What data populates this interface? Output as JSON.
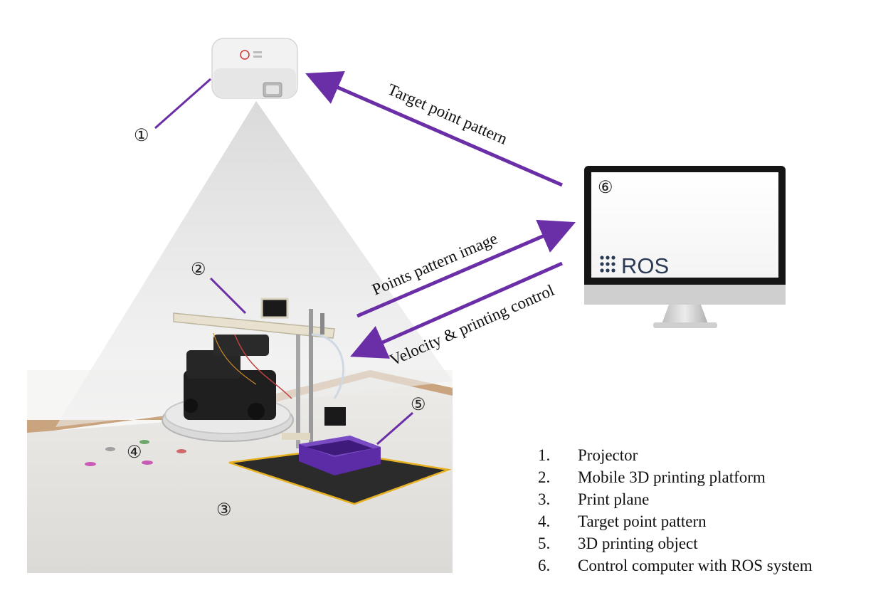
{
  "callouts": {
    "projector": "①",
    "platform": "②",
    "print_plane": "③",
    "pattern": "④",
    "object": "⑤",
    "computer": "⑥"
  },
  "arrows": {
    "target_pattern": "Target point pattern",
    "points_image": "Points pattern image",
    "velocity_control": "Velocity & printing control"
  },
  "monitor": {
    "ros_label": "ROS"
  },
  "legend": [
    {
      "num": "1.",
      "text": "Projector"
    },
    {
      "num": "2.",
      "text": "Mobile 3D printing platform"
    },
    {
      "num": "3.",
      "text": "Print plane"
    },
    {
      "num": "4.",
      "text": "Target point pattern"
    },
    {
      "num": "5.",
      "text": "3D printing object"
    },
    {
      "num": "6.",
      "text": "Control computer with ROS system"
    }
  ],
  "colors": {
    "arrow": "#6a2ea6",
    "pattern_dots": [
      "#c85bb5",
      "#6fa66a",
      "#d06a6a",
      "#a0a0a0"
    ],
    "print_object": "#5b2ca6",
    "print_bed": "#2b2b2b",
    "bed_tape": "#e6b020",
    "ros_text": "#2b3a55"
  }
}
